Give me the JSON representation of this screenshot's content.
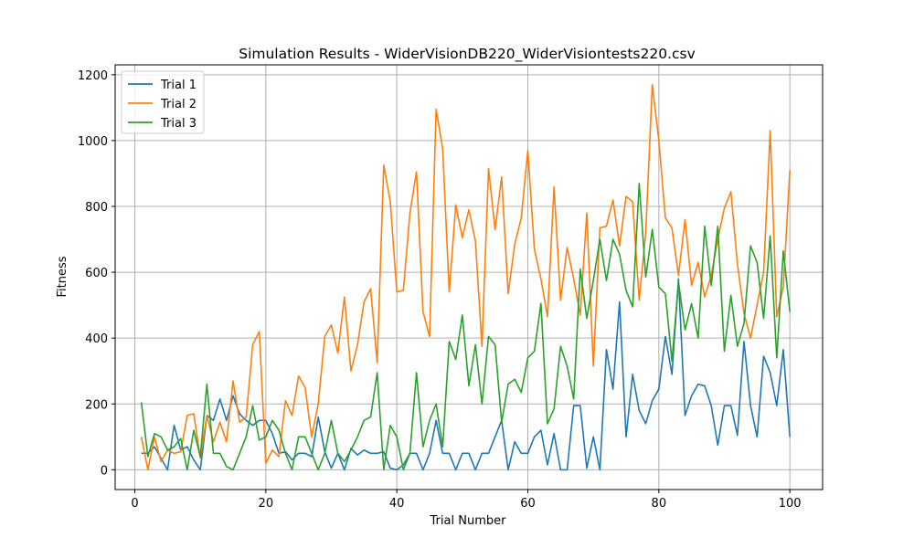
{
  "chart_data": {
    "type": "line",
    "title": "Simulation Results - WiderVisionDB220_WiderVisiontests220.csv",
    "xlabel": "Trial Number",
    "ylabel": "Fitness",
    "xlim": [
      -3,
      105
    ],
    "ylim": [
      -60,
      1230
    ],
    "xticks": [
      0,
      20,
      40,
      60,
      80,
      100
    ],
    "yticks": [
      0,
      200,
      400,
      600,
      800,
      1000,
      1200
    ],
    "grid": true,
    "legend_position": "top-left",
    "x": [
      1,
      2,
      3,
      4,
      5,
      6,
      7,
      8,
      9,
      10,
      11,
      12,
      13,
      14,
      15,
      16,
      17,
      18,
      19,
      20,
      21,
      22,
      23,
      24,
      25,
      26,
      27,
      28,
      29,
      30,
      31,
      32,
      33,
      34,
      35,
      36,
      37,
      38,
      39,
      40,
      41,
      42,
      43,
      44,
      45,
      46,
      47,
      48,
      49,
      50,
      51,
      52,
      53,
      54,
      55,
      56,
      57,
      58,
      59,
      60,
      61,
      62,
      63,
      64,
      65,
      66,
      67,
      68,
      69,
      70,
      71,
      72,
      73,
      74,
      75,
      76,
      77,
      78,
      79,
      80,
      81,
      82,
      83,
      84,
      85,
      86,
      87,
      88,
      89,
      90,
      91,
      92,
      93,
      94,
      95,
      96,
      97,
      98,
      99,
      100
    ],
    "series": [
      {
        "name": "Trial 1",
        "color": "#1f77b4",
        "values": [
          50,
          50,
          70,
          35,
          0,
          135,
          60,
          70,
          30,
          0,
          165,
          150,
          215,
          150,
          225,
          170,
          150,
          135,
          150,
          150,
          110,
          50,
          55,
          30,
          50,
          50,
          40,
          160,
          55,
          5,
          50,
          0,
          65,
          45,
          60,
          50,
          50,
          55,
          5,
          0,
          15,
          50,
          50,
          0,
          50,
          150,
          50,
          50,
          0,
          50,
          50,
          0,
          50,
          50,
          100,
          150,
          0,
          85,
          50,
          50,
          100,
          120,
          15,
          110,
          0,
          0,
          195,
          195,
          5,
          100,
          0,
          365,
          245,
          510,
          100,
          290,
          180,
          140,
          210,
          245,
          405,
          290,
          580,
          165,
          225,
          260,
          255,
          195,
          75,
          195,
          195,
          105,
          390,
          195,
          100,
          345,
          295,
          195,
          365,
          100
        ]
      },
      {
        "name": "Trial 2",
        "color": "#ff7f0e",
        "values": [
          100,
          0,
          100,
          25,
          60,
          50,
          55,
          165,
          170,
          35,
          165,
          85,
          145,
          85,
          270,
          145,
          160,
          380,
          420,
          20,
          60,
          40,
          210,
          165,
          285,
          250,
          100,
          200,
          405,
          440,
          355,
          525,
          300,
          380,
          510,
          550,
          325,
          925,
          815,
          540,
          545,
          780,
          905,
          480,
          405,
          1095,
          975,
          540,
          805,
          705,
          790,
          695,
          375,
          915,
          730,
          890,
          535,
          685,
          765,
          970,
          670,
          580,
          465,
          860,
          515,
          675,
          580,
          470,
          780,
          315,
          735,
          740,
          820,
          680,
          830,
          815,
          515,
          720,
          1170,
          1000,
          765,
          735,
          590,
          760,
          560,
          630,
          525,
          590,
          700,
          795,
          845,
          625,
          475,
          400,
          500,
          600,
          1030,
          465,
          555,
          910
        ]
      },
      {
        "name": "Trial 3",
        "color": "#2ca02c",
        "values": [
          205,
          40,
          110,
          100,
          60,
          70,
          95,
          0,
          120,
          40,
          260,
          50,
          50,
          10,
          0,
          50,
          100,
          195,
          90,
          100,
          150,
          120,
          50,
          0,
          100,
          100,
          50,
          0,
          50,
          150,
          50,
          25,
          60,
          100,
          150,
          160,
          295,
          0,
          135,
          100,
          0,
          50,
          295,
          70,
          150,
          200,
          70,
          390,
          335,
          470,
          255,
          380,
          200,
          405,
          380,
          145,
          260,
          275,
          235,
          340,
          360,
          505,
          140,
          185,
          375,
          315,
          215,
          610,
          460,
          575,
          700,
          575,
          700,
          655,
          545,
          495,
          870,
          585,
          730,
          555,
          535,
          330,
          570,
          425,
          505,
          400,
          740,
          560,
          740,
          360,
          530,
          375,
          445,
          680,
          630,
          460,
          710,
          340,
          665,
          480
        ]
      }
    ]
  }
}
